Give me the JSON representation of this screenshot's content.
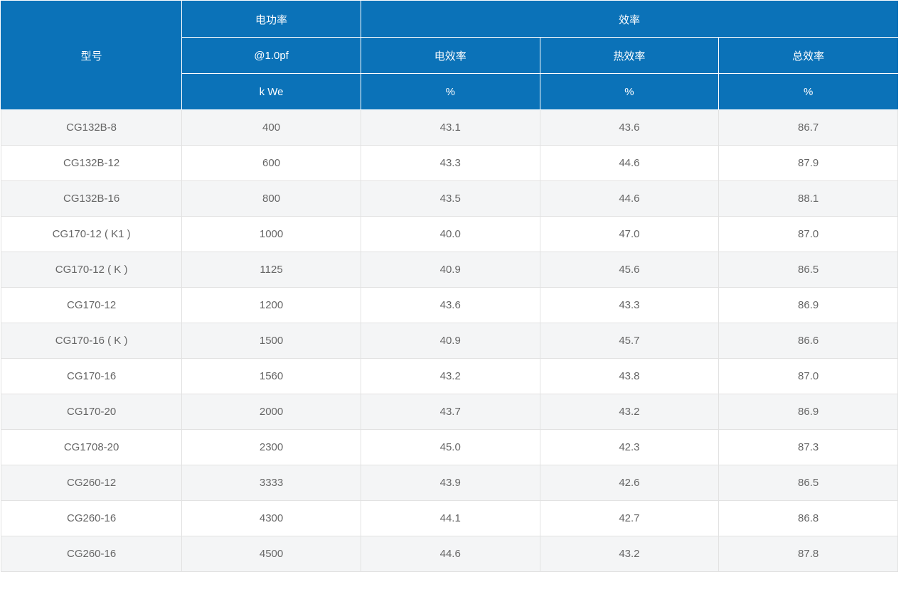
{
  "colors": {
    "header_bg": "#0b72b8",
    "header_text": "#ffffff",
    "stripe_bg": "#f4f5f6",
    "row_bg": "#ffffff",
    "border_color": "#e2e2e2",
    "outer_border": "#d9d9d9",
    "body_text": "#666666"
  },
  "header": {
    "model": "型号",
    "power": {
      "line1": "电功率",
      "line2": "@1.0pf",
      "unit": "k We"
    },
    "efficiency": {
      "label": "效率",
      "columns": [
        "电效率",
        "热效率",
        "总效率"
      ],
      "units": [
        "%",
        "%",
        "%"
      ]
    }
  },
  "rows": [
    {
      "model": "CG132B-8",
      "power": "400",
      "elec": "43.1",
      "heat": "43.6",
      "total": "86.7"
    },
    {
      "model": "CG132B-12",
      "power": "600",
      "elec": "43.3",
      "heat": "44.6",
      "total": "87.9"
    },
    {
      "model": "CG132B-16",
      "power": "800",
      "elec": "43.5",
      "heat": "44.6",
      "total": "88.1"
    },
    {
      "model": "CG170-12 ( K1 )",
      "power": "1000",
      "elec": "40.0",
      "heat": "47.0",
      "total": "87.0"
    },
    {
      "model": "CG170-12 ( K )",
      "power": "1125",
      "elec": "40.9",
      "heat": "45.6",
      "total": "86.5"
    },
    {
      "model": "CG170-12",
      "power": "1200",
      "elec": "43.6",
      "heat": "43.3",
      "total": "86.9"
    },
    {
      "model": "CG170-16 ( K )",
      "power": "1500",
      "elec": "40.9",
      "heat": "45.7",
      "total": "86.6"
    },
    {
      "model": "CG170-16",
      "power": "1560",
      "elec": "43.2",
      "heat": "43.8",
      "total": "87.0"
    },
    {
      "model": "CG170-20",
      "power": "2000",
      "elec": "43.7",
      "heat": "43.2",
      "total": "86.9"
    },
    {
      "model": "CG1708-20",
      "power": "2300",
      "elec": "45.0",
      "heat": "42.3",
      "total": "87.3"
    },
    {
      "model": "CG260-12",
      "power": "3333",
      "elec": "43.9",
      "heat": "42.6",
      "total": "86.5"
    },
    {
      "model": "CG260-16",
      "power": "4300",
      "elec": "44.1",
      "heat": "42.7",
      "total": "86.8"
    },
    {
      "model": "CG260-16",
      "power": "4500",
      "elec": "44.6",
      "heat": "43.2",
      "total": "87.8"
    }
  ]
}
